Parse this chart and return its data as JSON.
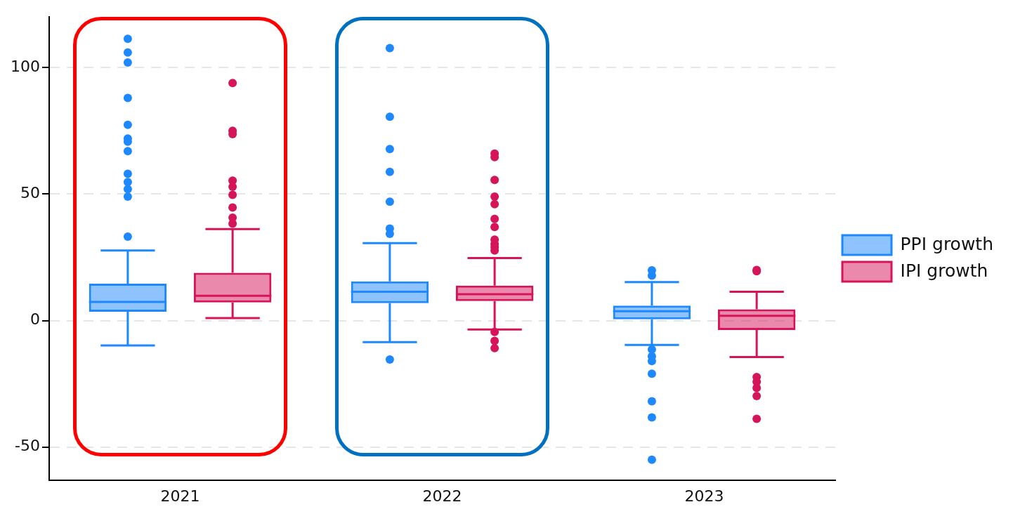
{
  "chart_data": {
    "type": "box",
    "categories": [
      "2021",
      "2022",
      "2023"
    ],
    "ylim": [
      -63,
      120
    ],
    "yticks": [
      -50,
      0,
      50,
      100
    ],
    "grid": "y",
    "legend": "right",
    "series": [
      {
        "name": "PPI growth",
        "color": "#1e88ff",
        "boxes": [
          {
            "low": -9.8,
            "q1": 3.5,
            "median": 7.4,
            "q3": 14.6,
            "high": 27.7,
            "outliers": [
              111.4,
              106,
              102,
              88,
              77.4,
              72,
              70.7,
              67,
              58,
              54.8,
              52,
              49,
              33.2
            ]
          },
          {
            "low": -8.5,
            "q1": 6.9,
            "median": 11.4,
            "q3": 15.5,
            "high": 30.6,
            "outliers": [
              107.7,
              80.6,
              67.8,
              58.8,
              47,
              36.4,
              34.3,
              -15.4
            ]
          },
          {
            "low": -9.6,
            "q1": 0.5,
            "median": 3.7,
            "q3": 5.9,
            "high": 15.2,
            "outliers": [
              19.9,
              17.8,
              -11.4,
              -14.1,
              -16,
              -21,
              -31.9,
              -38.3,
              -55
            ]
          }
        ]
      },
      {
        "name": "IPI growth",
        "color": "#d5145a",
        "boxes": [
          {
            "low": 1,
            "q1": 7.2,
            "median": 9.8,
            "q3": 18.9,
            "high": 36.2,
            "outliers": [
              93.9,
              75,
              73.7,
              55.3,
              52.9,
              49.7,
              44.7,
              40.7,
              38.3
            ]
          },
          {
            "low": -3.5,
            "q1": 7.7,
            "median": 10.4,
            "q3": 13.8,
            "high": 24.7,
            "outliers": [
              66,
              64.6,
              55.6,
              49,
              46,
              40.2,
              37,
              32,
              30.3,
              29,
              27.7,
              -4.5,
              -8,
              -10.9
            ]
          },
          {
            "low": -14.4,
            "q1": -3.7,
            "median": 1.9,
            "q3": 4.5,
            "high": 11.4,
            "outliers": [
              20,
              19.5,
              -22.3,
              -24.2,
              -26.6,
              -29.8,
              -38.8
            ]
          }
        ]
      }
    ]
  }
}
